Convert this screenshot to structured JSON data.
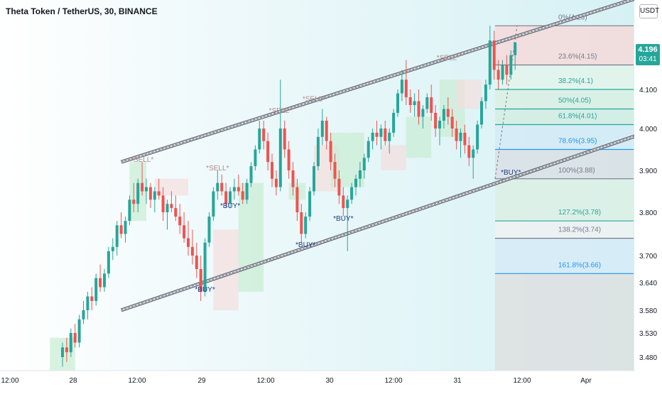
{
  "header": {
    "title": "Theta Token / TetherUS, 30, BINANCE"
  },
  "currency_badge": "USDT",
  "last_price": {
    "price": "4.196",
    "countdown": "03:41",
    "color": "#26a69a"
  },
  "colors": {
    "up": "#26a69a",
    "down": "#ef5350",
    "channel": "#5d606b",
    "fib_grey": "#787b86",
    "fib_teal": "#26a69a",
    "fib_blue": "#2196f3"
  },
  "chart_data": {
    "type": "candlestick",
    "symbol": "Theta Token / TetherUS",
    "interval": "30",
    "exchange": "BINANCE",
    "y_ticks": [
      "4.100",
      "4.000",
      "3.900",
      "3.800",
      "3.700",
      "3.640",
      "3.580",
      "3.530",
      "3.480"
    ],
    "x_ticks": [
      "12:00",
      "28",
      "12:00",
      "29",
      "12:00",
      "30",
      "12:00",
      "31",
      "12:00",
      "Apr"
    ],
    "fib_levels": [
      {
        "label": "0%(4.23)",
        "value": 4.23,
        "color": "#787b86"
      },
      {
        "label": "23.6%(4.15)",
        "value": 4.15,
        "color": "#787b86"
      },
      {
        "label": "38.2%(4.1)",
        "value": 4.1,
        "color": "#26a69a"
      },
      {
        "label": "50%(4.05)",
        "value": 4.05,
        "color": "#26a69a"
      },
      {
        "label": "61.8%(4.01)",
        "value": 4.01,
        "color": "#26a69a"
      },
      {
        "label": "78.6%(3.95)",
        "value": 3.95,
        "color": "#2196f3"
      },
      {
        "label": "100%(3.88)",
        "value": 3.88,
        "color": "#787b86"
      },
      {
        "label": "127.2%(3.78)",
        "value": 3.78,
        "color": "#26a69a"
      },
      {
        "label": "138.2%(3.74)",
        "value": 3.74,
        "color": "#787b86"
      },
      {
        "label": "161.8%(3.66)",
        "value": 3.66,
        "color": "#2196f3"
      }
    ],
    "signals": [
      {
        "label": "*SELL*",
        "time": 19,
        "value": 3.92
      },
      {
        "label": "*SELL*",
        "time": 37,
        "value": 3.9
      },
      {
        "label": "*SELL*",
        "time": 52,
        "value": 4.04
      },
      {
        "label": "*SELL*",
        "time": 60,
        "value": 4.07
      },
      {
        "label": "*SELL*",
        "time": 92,
        "value": 4.16
      },
      {
        "label": "*BUY*",
        "time": 40,
        "value": 3.81
      },
      {
        "label": "*BUY*",
        "time": 34,
        "value": 3.62
      },
      {
        "label": "*BUY*",
        "time": 58,
        "value": 3.72
      },
      {
        "label": "*BUY*",
        "time": 67,
        "value": 3.78
      },
      {
        "label": "*BUY*",
        "time": 107,
        "value": 3.89
      }
    ],
    "channel": {
      "upper": [
        {
          "time": 14,
          "value": 3.92
        },
        {
          "time": 142,
          "value": 4.36
        }
      ],
      "lower": [
        {
          "time": 14,
          "value": 3.58
        },
        {
          "time": 142,
          "value": 4.0
        }
      ]
    },
    "ohlc": [
      [
        3.48,
        3.51,
        3.46,
        3.5
      ],
      [
        3.5,
        3.52,
        3.47,
        3.49
      ],
      [
        3.49,
        3.54,
        3.48,
        3.53
      ],
      [
        3.53,
        3.55,
        3.5,
        3.51
      ],
      [
        3.51,
        3.57,
        3.5,
        3.56
      ],
      [
        3.56,
        3.6,
        3.55,
        3.58
      ],
      [
        3.58,
        3.62,
        3.56,
        3.61
      ],
      [
        3.61,
        3.63,
        3.58,
        3.6
      ],
      [
        3.6,
        3.66,
        3.59,
        3.65
      ],
      [
        3.65,
        3.68,
        3.62,
        3.63
      ],
      [
        3.63,
        3.67,
        3.62,
        3.66
      ],
      [
        3.66,
        3.72,
        3.65,
        3.71
      ],
      [
        3.71,
        3.74,
        3.69,
        3.72
      ],
      [
        3.72,
        3.78,
        3.7,
        3.77
      ],
      [
        3.77,
        3.8,
        3.74,
        3.75
      ],
      [
        3.75,
        3.79,
        3.73,
        3.78
      ],
      [
        3.78,
        3.84,
        3.77,
        3.83
      ],
      [
        3.83,
        3.87,
        3.8,
        3.82
      ],
      [
        3.82,
        3.88,
        3.8,
        3.87
      ],
      [
        3.87,
        3.92,
        3.84,
        3.85
      ],
      [
        3.85,
        3.88,
        3.82,
        3.86
      ],
      [
        3.86,
        3.87,
        3.81,
        3.83
      ],
      [
        3.83,
        3.86,
        3.8,
        3.85
      ],
      [
        3.85,
        3.88,
        3.83,
        3.84
      ],
      [
        3.84,
        3.86,
        3.78,
        3.8
      ],
      [
        3.8,
        3.83,
        3.76,
        3.82
      ],
      [
        3.82,
        3.85,
        3.8,
        3.81
      ],
      [
        3.81,
        3.84,
        3.78,
        3.79
      ],
      [
        3.79,
        3.82,
        3.75,
        3.77
      ],
      [
        3.77,
        3.8,
        3.73,
        3.74
      ],
      [
        3.74,
        3.78,
        3.7,
        3.72
      ],
      [
        3.72,
        3.76,
        3.68,
        3.7
      ],
      [
        3.7,
        3.73,
        3.65,
        3.67
      ],
      [
        3.67,
        3.7,
        3.6,
        3.62
      ],
      [
        3.62,
        3.74,
        3.61,
        3.73
      ],
      [
        3.73,
        3.8,
        3.72,
        3.79
      ],
      [
        3.79,
        3.86,
        3.78,
        3.85
      ],
      [
        3.85,
        3.9,
        3.83,
        3.87
      ],
      [
        3.87,
        3.89,
        3.84,
        3.85
      ],
      [
        3.85,
        3.87,
        3.81,
        3.82
      ],
      [
        3.82,
        3.86,
        3.81,
        3.85
      ],
      [
        3.85,
        3.88,
        3.83,
        3.86
      ],
      [
        3.86,
        3.89,
        3.84,
        3.85
      ],
      [
        3.85,
        3.87,
        3.82,
        3.83
      ],
      [
        3.83,
        3.88,
        3.82,
        3.87
      ],
      [
        3.87,
        3.92,
        3.86,
        3.91
      ],
      [
        3.91,
        3.96,
        3.9,
        3.95
      ],
      [
        3.95,
        4.02,
        3.94,
        4.0
      ],
      [
        4.0,
        4.02,
        3.95,
        3.97
      ],
      [
        3.97,
        3.99,
        3.9,
        3.92
      ],
      [
        3.92,
        3.94,
        3.86,
        3.88
      ],
      [
        3.88,
        3.9,
        3.84,
        3.86
      ],
      [
        3.86,
        4.12,
        3.85,
        4.0
      ],
      [
        4.0,
        4.02,
        3.93,
        3.95
      ],
      [
        3.95,
        3.97,
        3.88,
        3.9
      ],
      [
        3.9,
        3.92,
        3.84,
        3.86
      ],
      [
        3.86,
        3.88,
        3.78,
        3.8
      ],
      [
        3.8,
        3.82,
        3.73,
        3.75
      ],
      [
        3.75,
        3.8,
        3.74,
        3.79
      ],
      [
        3.79,
        3.86,
        3.78,
        3.85
      ],
      [
        3.85,
        3.92,
        3.84,
        3.91
      ],
      [
        3.91,
        4.0,
        3.9,
        3.98
      ],
      [
        3.98,
        4.05,
        3.96,
        4.02
      ],
      [
        4.02,
        4.03,
        3.95,
        3.97
      ],
      [
        3.97,
        3.99,
        3.9,
        3.92
      ],
      [
        3.92,
        3.94,
        3.86,
        3.88
      ],
      [
        3.88,
        3.9,
        3.82,
        3.84
      ],
      [
        3.84,
        3.86,
        3.79,
        3.81
      ],
      [
        3.81,
        3.84,
        3.71,
        3.83
      ],
      [
        3.83,
        3.87,
        3.82,
        3.86
      ],
      [
        3.86,
        3.89,
        3.84,
        3.88
      ],
      [
        3.88,
        3.92,
        3.86,
        3.9
      ],
      [
        3.9,
        3.94,
        3.88,
        3.93
      ],
      [
        3.93,
        3.98,
        3.92,
        3.97
      ],
      [
        3.97,
        4.0,
        3.95,
        3.99
      ],
      [
        3.99,
        4.02,
        3.96,
        3.98
      ],
      [
        3.98,
        4.01,
        3.95,
        4.0
      ],
      [
        4.0,
        4.02,
        3.96,
        3.97
      ],
      [
        3.97,
        4.0,
        3.94,
        3.99
      ],
      [
        3.99,
        4.05,
        3.98,
        4.04
      ],
      [
        4.04,
        4.1,
        4.03,
        4.09
      ],
      [
        4.09,
        4.14,
        4.07,
        4.12
      ],
      [
        4.12,
        4.16,
        4.06,
        4.08
      ],
      [
        4.08,
        4.1,
        4.04,
        4.06
      ],
      [
        4.06,
        4.09,
        4.03,
        4.07
      ],
      [
        4.07,
        4.1,
        4.01,
        4.03
      ],
      [
        4.03,
        4.06,
        4.0,
        4.05
      ],
      [
        4.05,
        4.09,
        4.04,
        4.08
      ],
      [
        4.08,
        4.11,
        4.02,
        4.04
      ],
      [
        4.04,
        4.06,
        3.98,
        4.0
      ],
      [
        4.0,
        4.03,
        3.96,
        4.02
      ],
      [
        4.02,
        4.06,
        4.0,
        4.05
      ],
      [
        4.05,
        4.08,
        4.01,
        4.03
      ],
      [
        4.03,
        4.05,
        3.98,
        4.0
      ],
      [
        4.0,
        4.02,
        3.95,
        3.97
      ],
      [
        3.97,
        4.0,
        3.93,
        3.99
      ],
      [
        3.99,
        4.01,
        3.94,
        3.96
      ],
      [
        3.96,
        3.98,
        3.91,
        3.93
      ],
      [
        3.93,
        3.96,
        3.88,
        3.95
      ],
      [
        3.95,
        4.02,
        3.94,
        4.01
      ],
      [
        4.01,
        4.08,
        4.0,
        4.07
      ],
      [
        4.07,
        4.12,
        4.05,
        4.11
      ],
      [
        4.11,
        4.23,
        4.1,
        4.2
      ],
      [
        4.2,
        4.22,
        4.12,
        4.14
      ],
      [
        4.14,
        4.16,
        4.1,
        4.12
      ],
      [
        4.12,
        4.16,
        4.11,
        4.15
      ],
      [
        4.15,
        4.17,
        4.11,
        4.13
      ],
      [
        4.13,
        4.18,
        4.12,
        4.17
      ],
      [
        4.17,
        4.19,
        4.14,
        4.196
      ]
    ]
  }
}
